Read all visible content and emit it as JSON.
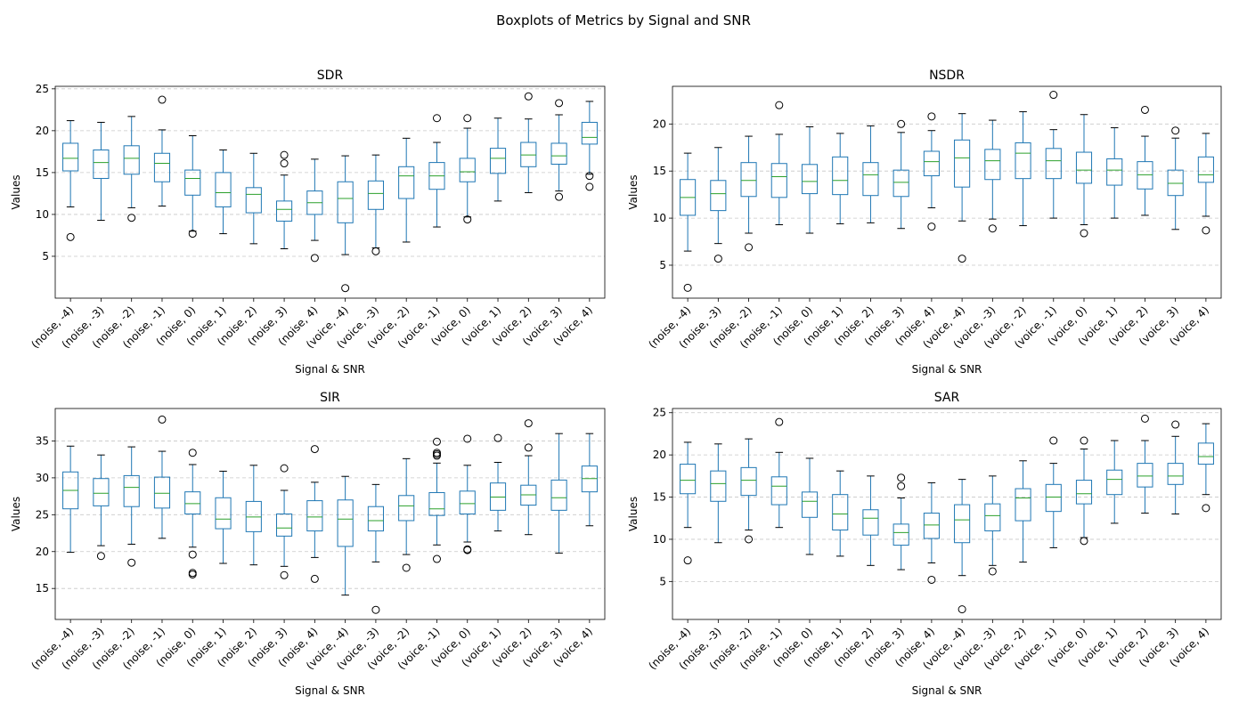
{
  "figure": {
    "title": "Boxplots of Metrics by Signal and SNR"
  },
  "style": {
    "box_color": "#1f77b4",
    "median_color": "#2ca02c",
    "grid_color": "#c8c8c8",
    "axes_color": "#000000"
  },
  "chart_data": [
    {
      "type": "box",
      "title": "SDR",
      "xlabel": "Signal & SNR",
      "ylabel": "Values",
      "ylim": [
        0.0,
        25.3
      ],
      "yticks": [
        5,
        10,
        15,
        20,
        25
      ],
      "grid": "y-dashed",
      "categories": [
        "(noise, -4)",
        "(noise, -3)",
        "(noise, -2)",
        "(noise, -1)",
        "(noise, 0)",
        "(noise, 1)",
        "(noise, 2)",
        "(noise, 3)",
        "(noise, 4)",
        "(voice, -4)",
        "(voice, -3)",
        "(voice, -2)",
        "(voice, -1)",
        "(voice, 0)",
        "(voice, 1)",
        "(voice, 2)",
        "(voice, 3)",
        "(voice, 4)"
      ],
      "boxes": [
        {
          "whislo": 10.9,
          "q1": 15.2,
          "med": 16.7,
          "q3": 18.5,
          "whishi": 21.2,
          "fliers": [
            7.3
          ]
        },
        {
          "whislo": 9.3,
          "q1": 14.3,
          "med": 16.2,
          "q3": 17.7,
          "whishi": 21.0,
          "fliers": []
        },
        {
          "whislo": 10.8,
          "q1": 14.8,
          "med": 16.7,
          "q3": 18.2,
          "whishi": 21.7,
          "fliers": [
            9.6
          ]
        },
        {
          "whislo": 11.0,
          "q1": 13.9,
          "med": 16.1,
          "q3": 17.3,
          "whishi": 20.1,
          "fliers": [
            23.7
          ]
        },
        {
          "whislo": 8.0,
          "q1": 12.3,
          "med": 14.3,
          "q3": 15.3,
          "whishi": 19.4,
          "fliers": [
            7.7
          ]
        },
        {
          "whislo": 7.7,
          "q1": 10.9,
          "med": 12.6,
          "q3": 15.0,
          "whishi": 17.7,
          "fliers": []
        },
        {
          "whislo": 6.5,
          "q1": 10.2,
          "med": 12.4,
          "q3": 13.2,
          "whishi": 17.3,
          "fliers": []
        },
        {
          "whislo": 5.9,
          "q1": 9.2,
          "med": 10.6,
          "q3": 11.6,
          "whishi": 14.7,
          "fliers": [
            16.1,
            17.1
          ]
        },
        {
          "whislo": 6.9,
          "q1": 10.0,
          "med": 11.4,
          "q3": 12.8,
          "whishi": 16.6,
          "fliers": [
            4.8
          ]
        },
        {
          "whislo": 5.2,
          "q1": 9.0,
          "med": 11.9,
          "q3": 13.9,
          "whishi": 17.0,
          "fliers": [
            1.2
          ]
        },
        {
          "whislo": 6.0,
          "q1": 10.6,
          "med": 12.5,
          "q3": 14.0,
          "whishi": 17.1,
          "fliers": [
            5.6
          ]
        },
        {
          "whislo": 6.7,
          "q1": 11.9,
          "med": 14.6,
          "q3": 15.7,
          "whishi": 19.1,
          "fliers": []
        },
        {
          "whislo": 8.5,
          "q1": 13.0,
          "med": 14.6,
          "q3": 16.2,
          "whishi": 18.6,
          "fliers": [
            21.5
          ]
        },
        {
          "whislo": 9.7,
          "q1": 13.9,
          "med": 15.1,
          "q3": 16.7,
          "whishi": 20.3,
          "fliers": [
            9.4,
            21.5
          ]
        },
        {
          "whislo": 11.6,
          "q1": 14.9,
          "med": 16.7,
          "q3": 17.9,
          "whishi": 21.5,
          "fliers": []
        },
        {
          "whislo": 12.6,
          "q1": 15.7,
          "med": 17.1,
          "q3": 18.6,
          "whishi": 21.4,
          "fliers": [
            24.1
          ]
        },
        {
          "whislo": 12.8,
          "q1": 16.0,
          "med": 17.0,
          "q3": 18.5,
          "whishi": 21.9,
          "fliers": [
            12.1,
            23.3
          ]
        },
        {
          "whislo": 14.8,
          "q1": 18.4,
          "med": 19.2,
          "q3": 21.0,
          "whishi": 23.5,
          "fliers": [
            13.3,
            14.6
          ]
        }
      ]
    },
    {
      "type": "box",
      "title": "NSDR",
      "xlabel": "Signal & SNR",
      "ylabel": "Values",
      "ylim": [
        1.5,
        24.0
      ],
      "yticks": [
        5,
        10,
        15,
        20
      ],
      "grid": "y-dashed",
      "categories": [
        "(noise, -4)",
        "(noise, -3)",
        "(noise, -2)",
        "(noise, -1)",
        "(noise, 0)",
        "(noise, 1)",
        "(noise, 2)",
        "(noise, 3)",
        "(noise, 4)",
        "(voice, -4)",
        "(voice, -3)",
        "(voice, -2)",
        "(voice, -1)",
        "(voice, 0)",
        "(voice, 1)",
        "(voice, 2)",
        "(voice, 3)",
        "(voice, 4)"
      ],
      "boxes": [
        {
          "whislo": 6.5,
          "q1": 10.3,
          "med": 12.2,
          "q3": 14.1,
          "whishi": 16.9,
          "fliers": [
            2.6
          ]
        },
        {
          "whislo": 7.3,
          "q1": 10.8,
          "med": 12.6,
          "q3": 14.0,
          "whishi": 17.5,
          "fliers": [
            5.7
          ]
        },
        {
          "whislo": 8.4,
          "q1": 12.3,
          "med": 14.0,
          "q3": 15.9,
          "whishi": 18.7,
          "fliers": [
            6.9
          ]
        },
        {
          "whislo": 9.3,
          "q1": 12.2,
          "med": 14.4,
          "q3": 15.8,
          "whishi": 18.9,
          "fliers": [
            22.0
          ]
        },
        {
          "whislo": 8.4,
          "q1": 12.6,
          "med": 13.9,
          "q3": 15.7,
          "whishi": 19.7,
          "fliers": []
        },
        {
          "whislo": 9.4,
          "q1": 12.5,
          "med": 14.0,
          "q3": 16.5,
          "whishi": 19.0,
          "fliers": []
        },
        {
          "whislo": 9.5,
          "q1": 12.4,
          "med": 14.6,
          "q3": 15.9,
          "whishi": 19.8,
          "fliers": []
        },
        {
          "whislo": 8.9,
          "q1": 12.3,
          "med": 13.8,
          "q3": 15.1,
          "whishi": 19.1,
          "fliers": [
            20.0
          ]
        },
        {
          "whislo": 11.1,
          "q1": 14.5,
          "med": 16.0,
          "q3": 17.1,
          "whishi": 19.3,
          "fliers": [
            9.1,
            20.8
          ]
        },
        {
          "whislo": 9.7,
          "q1": 13.3,
          "med": 16.4,
          "q3": 18.3,
          "whishi": 21.1,
          "fliers": [
            5.7
          ]
        },
        {
          "whislo": 9.9,
          "q1": 14.1,
          "med": 16.1,
          "q3": 17.3,
          "whishi": 20.4,
          "fliers": [
            8.9
          ]
        },
        {
          "whislo": 9.2,
          "q1": 14.2,
          "med": 16.9,
          "q3": 18.0,
          "whishi": 21.3,
          "fliers": []
        },
        {
          "whislo": 10.0,
          "q1": 14.2,
          "med": 16.1,
          "q3": 17.4,
          "whishi": 19.4,
          "fliers": [
            23.1
          ]
        },
        {
          "whislo": 9.3,
          "q1": 13.7,
          "med": 15.1,
          "q3": 17.0,
          "whishi": 21.0,
          "fliers": [
            8.4
          ]
        },
        {
          "whislo": 10.0,
          "q1": 13.5,
          "med": 15.1,
          "q3": 16.3,
          "whishi": 19.6,
          "fliers": []
        },
        {
          "whislo": 10.3,
          "q1": 13.1,
          "med": 14.6,
          "q3": 16.0,
          "whishi": 18.7,
          "fliers": [
            21.5
          ]
        },
        {
          "whislo": 8.8,
          "q1": 12.4,
          "med": 13.7,
          "q3": 15.1,
          "whishi": 18.5,
          "fliers": [
            19.3
          ]
        },
        {
          "whislo": 10.2,
          "q1": 13.8,
          "med": 14.6,
          "q3": 16.5,
          "whishi": 19.0,
          "fliers": [
            8.7
          ]
        }
      ]
    },
    {
      "type": "box",
      "title": "SIR",
      "xlabel": "Signal & SNR",
      "ylabel": "Values",
      "ylim": [
        10.8,
        39.4
      ],
      "yticks": [
        15,
        20,
        25,
        30,
        35
      ],
      "grid": "y-dashed",
      "categories": [
        "(noise, -4)",
        "(noise, -3)",
        "(noise, -2)",
        "(noise, -1)",
        "(noise, 0)",
        "(noise, 1)",
        "(noise, 2)",
        "(noise, 3)",
        "(noise, 4)",
        "(voice, -4)",
        "(voice, -3)",
        "(voice, -2)",
        "(voice, -1)",
        "(voice, 0)",
        "(voice, 1)",
        "(voice, 2)",
        "(voice, 3)",
        "(voice, 4)"
      ],
      "boxes": [
        {
          "whislo": 19.9,
          "q1": 25.8,
          "med": 28.3,
          "q3": 30.8,
          "whishi": 34.3,
          "fliers": []
        },
        {
          "whislo": 20.8,
          "q1": 26.2,
          "med": 27.9,
          "q3": 29.9,
          "whishi": 33.1,
          "fliers": [
            19.4
          ]
        },
        {
          "whislo": 21.0,
          "q1": 26.1,
          "med": 28.7,
          "q3": 30.3,
          "whishi": 34.2,
          "fliers": [
            18.5
          ]
        },
        {
          "whislo": 21.8,
          "q1": 25.9,
          "med": 27.9,
          "q3": 30.1,
          "whishi": 33.6,
          "fliers": [
            37.9
          ]
        },
        {
          "whislo": 20.6,
          "q1": 25.1,
          "med": 26.5,
          "q3": 28.1,
          "whishi": 31.8,
          "fliers": [
            16.9,
            17.1,
            19.6,
            33.4
          ]
        },
        {
          "whislo": 18.4,
          "q1": 23.1,
          "med": 24.4,
          "q3": 27.3,
          "whishi": 30.9,
          "fliers": []
        },
        {
          "whislo": 18.2,
          "q1": 22.7,
          "med": 24.7,
          "q3": 26.8,
          "whishi": 31.7,
          "fliers": []
        },
        {
          "whislo": 18.0,
          "q1": 22.1,
          "med": 23.2,
          "q3": 25.1,
          "whishi": 28.3,
          "fliers": [
            16.8,
            31.3
          ]
        },
        {
          "whislo": 19.2,
          "q1": 22.8,
          "med": 24.7,
          "q3": 26.9,
          "whishi": 29.4,
          "fliers": [
            16.3,
            33.9
          ]
        },
        {
          "whislo": 14.1,
          "q1": 20.7,
          "med": 24.4,
          "q3": 27.0,
          "whishi": 30.2,
          "fliers": []
        },
        {
          "whislo": 18.6,
          "q1": 22.8,
          "med": 24.2,
          "q3": 26.1,
          "whishi": 29.1,
          "fliers": [
            12.1
          ]
        },
        {
          "whislo": 19.6,
          "q1": 24.2,
          "med": 26.2,
          "q3": 27.6,
          "whishi": 32.6,
          "fliers": [
            17.8
          ]
        },
        {
          "whislo": 20.9,
          "q1": 24.9,
          "med": 25.8,
          "q3": 28.0,
          "whishi": 32.0,
          "fliers": [
            19.0,
            33.0,
            33.2,
            33.4,
            34.9
          ]
        },
        {
          "whislo": 21.3,
          "q1": 25.1,
          "med": 26.5,
          "q3": 28.2,
          "whishi": 31.7,
          "fliers": [
            20.2,
            20.3,
            35.3
          ]
        },
        {
          "whislo": 22.8,
          "q1": 25.6,
          "med": 27.4,
          "q3": 29.3,
          "whishi": 32.1,
          "fliers": [
            35.4
          ]
        },
        {
          "whislo": 22.3,
          "q1": 26.3,
          "med": 27.7,
          "q3": 29.0,
          "whishi": 33.0,
          "fliers": [
            34.1,
            37.4
          ]
        },
        {
          "whislo": 19.8,
          "q1": 25.6,
          "med": 27.3,
          "q3": 29.7,
          "whishi": 36.0,
          "fliers": []
        },
        {
          "whislo": 23.5,
          "q1": 28.1,
          "med": 29.9,
          "q3": 31.6,
          "whishi": 36.0,
          "fliers": []
        }
      ]
    },
    {
      "type": "box",
      "title": "SAR",
      "xlabel": "Signal & SNR",
      "ylabel": "Values",
      "ylim": [
        0.5,
        25.5
      ],
      "yticks": [
        5,
        10,
        15,
        20,
        25
      ],
      "grid": "y-dashed",
      "categories": [
        "(noise, -4)",
        "(noise, -3)",
        "(noise, -2)",
        "(noise, -1)",
        "(noise, 0)",
        "(noise, 1)",
        "(noise, 2)",
        "(noise, 3)",
        "(noise, 4)",
        "(voice, -4)",
        "(voice, -3)",
        "(voice, -2)",
        "(voice, -1)",
        "(voice, 0)",
        "(voice, 1)",
        "(voice, 2)",
        "(voice, 3)",
        "(voice, 4)"
      ],
      "boxes": [
        {
          "whislo": 11.4,
          "q1": 15.4,
          "med": 17.0,
          "q3": 18.9,
          "whishi": 21.5,
          "fliers": [
            7.5
          ]
        },
        {
          "whislo": 9.6,
          "q1": 14.5,
          "med": 16.6,
          "q3": 18.1,
          "whishi": 21.3,
          "fliers": []
        },
        {
          "whislo": 11.1,
          "q1": 15.2,
          "med": 17.0,
          "q3": 18.5,
          "whishi": 21.9,
          "fliers": [
            10.0
          ]
        },
        {
          "whislo": 11.4,
          "q1": 14.1,
          "med": 16.3,
          "q3": 17.4,
          "whishi": 20.3,
          "fliers": [
            23.9
          ]
        },
        {
          "whislo": 8.2,
          "q1": 12.6,
          "med": 14.5,
          "q3": 15.6,
          "whishi": 19.6,
          "fliers": []
        },
        {
          "whislo": 8.0,
          "q1": 11.1,
          "med": 13.0,
          "q3": 15.3,
          "whishi": 18.1,
          "fliers": []
        },
        {
          "whislo": 6.9,
          "q1": 10.5,
          "med": 12.5,
          "q3": 13.5,
          "whishi": 17.5,
          "fliers": []
        },
        {
          "whislo": 6.4,
          "q1": 9.3,
          "med": 10.8,
          "q3": 11.8,
          "whishi": 14.9,
          "fliers": [
            16.3,
            17.3
          ]
        },
        {
          "whislo": 7.2,
          "q1": 10.1,
          "med": 11.7,
          "q3": 13.1,
          "whishi": 16.7,
          "fliers": [
            5.2
          ]
        },
        {
          "whislo": 5.7,
          "q1": 9.6,
          "med": 12.3,
          "q3": 14.1,
          "whishi": 17.1,
          "fliers": [
            1.7
          ]
        },
        {
          "whislo": 6.9,
          "q1": 11.0,
          "med": 12.8,
          "q3": 14.2,
          "whishi": 17.5,
          "fliers": [
            6.2
          ]
        },
        {
          "whislo": 7.3,
          "q1": 12.2,
          "med": 14.9,
          "q3": 16.0,
          "whishi": 19.3,
          "fliers": []
        },
        {
          "whislo": 9.0,
          "q1": 13.3,
          "med": 15.0,
          "q3": 16.5,
          "whishi": 19.0,
          "fliers": [
            21.7
          ]
        },
        {
          "whislo": 10.2,
          "q1": 14.2,
          "med": 15.4,
          "q3": 17.0,
          "whishi": 20.7,
          "fliers": [
            9.8,
            21.7
          ]
        },
        {
          "whislo": 11.9,
          "q1": 15.3,
          "med": 17.1,
          "q3": 18.2,
          "whishi": 21.7,
          "fliers": []
        },
        {
          "whislo": 13.1,
          "q1": 16.2,
          "med": 17.5,
          "q3": 19.0,
          "whishi": 21.7,
          "fliers": [
            24.3
          ]
        },
        {
          "whislo": 13.0,
          "q1": 16.5,
          "med": 17.5,
          "q3": 19.0,
          "whishi": 22.2,
          "fliers": [
            23.6
          ]
        },
        {
          "whislo": 15.3,
          "q1": 18.9,
          "med": 19.8,
          "q3": 21.4,
          "whishi": 23.7,
          "fliers": [
            13.7
          ]
        }
      ]
    }
  ]
}
